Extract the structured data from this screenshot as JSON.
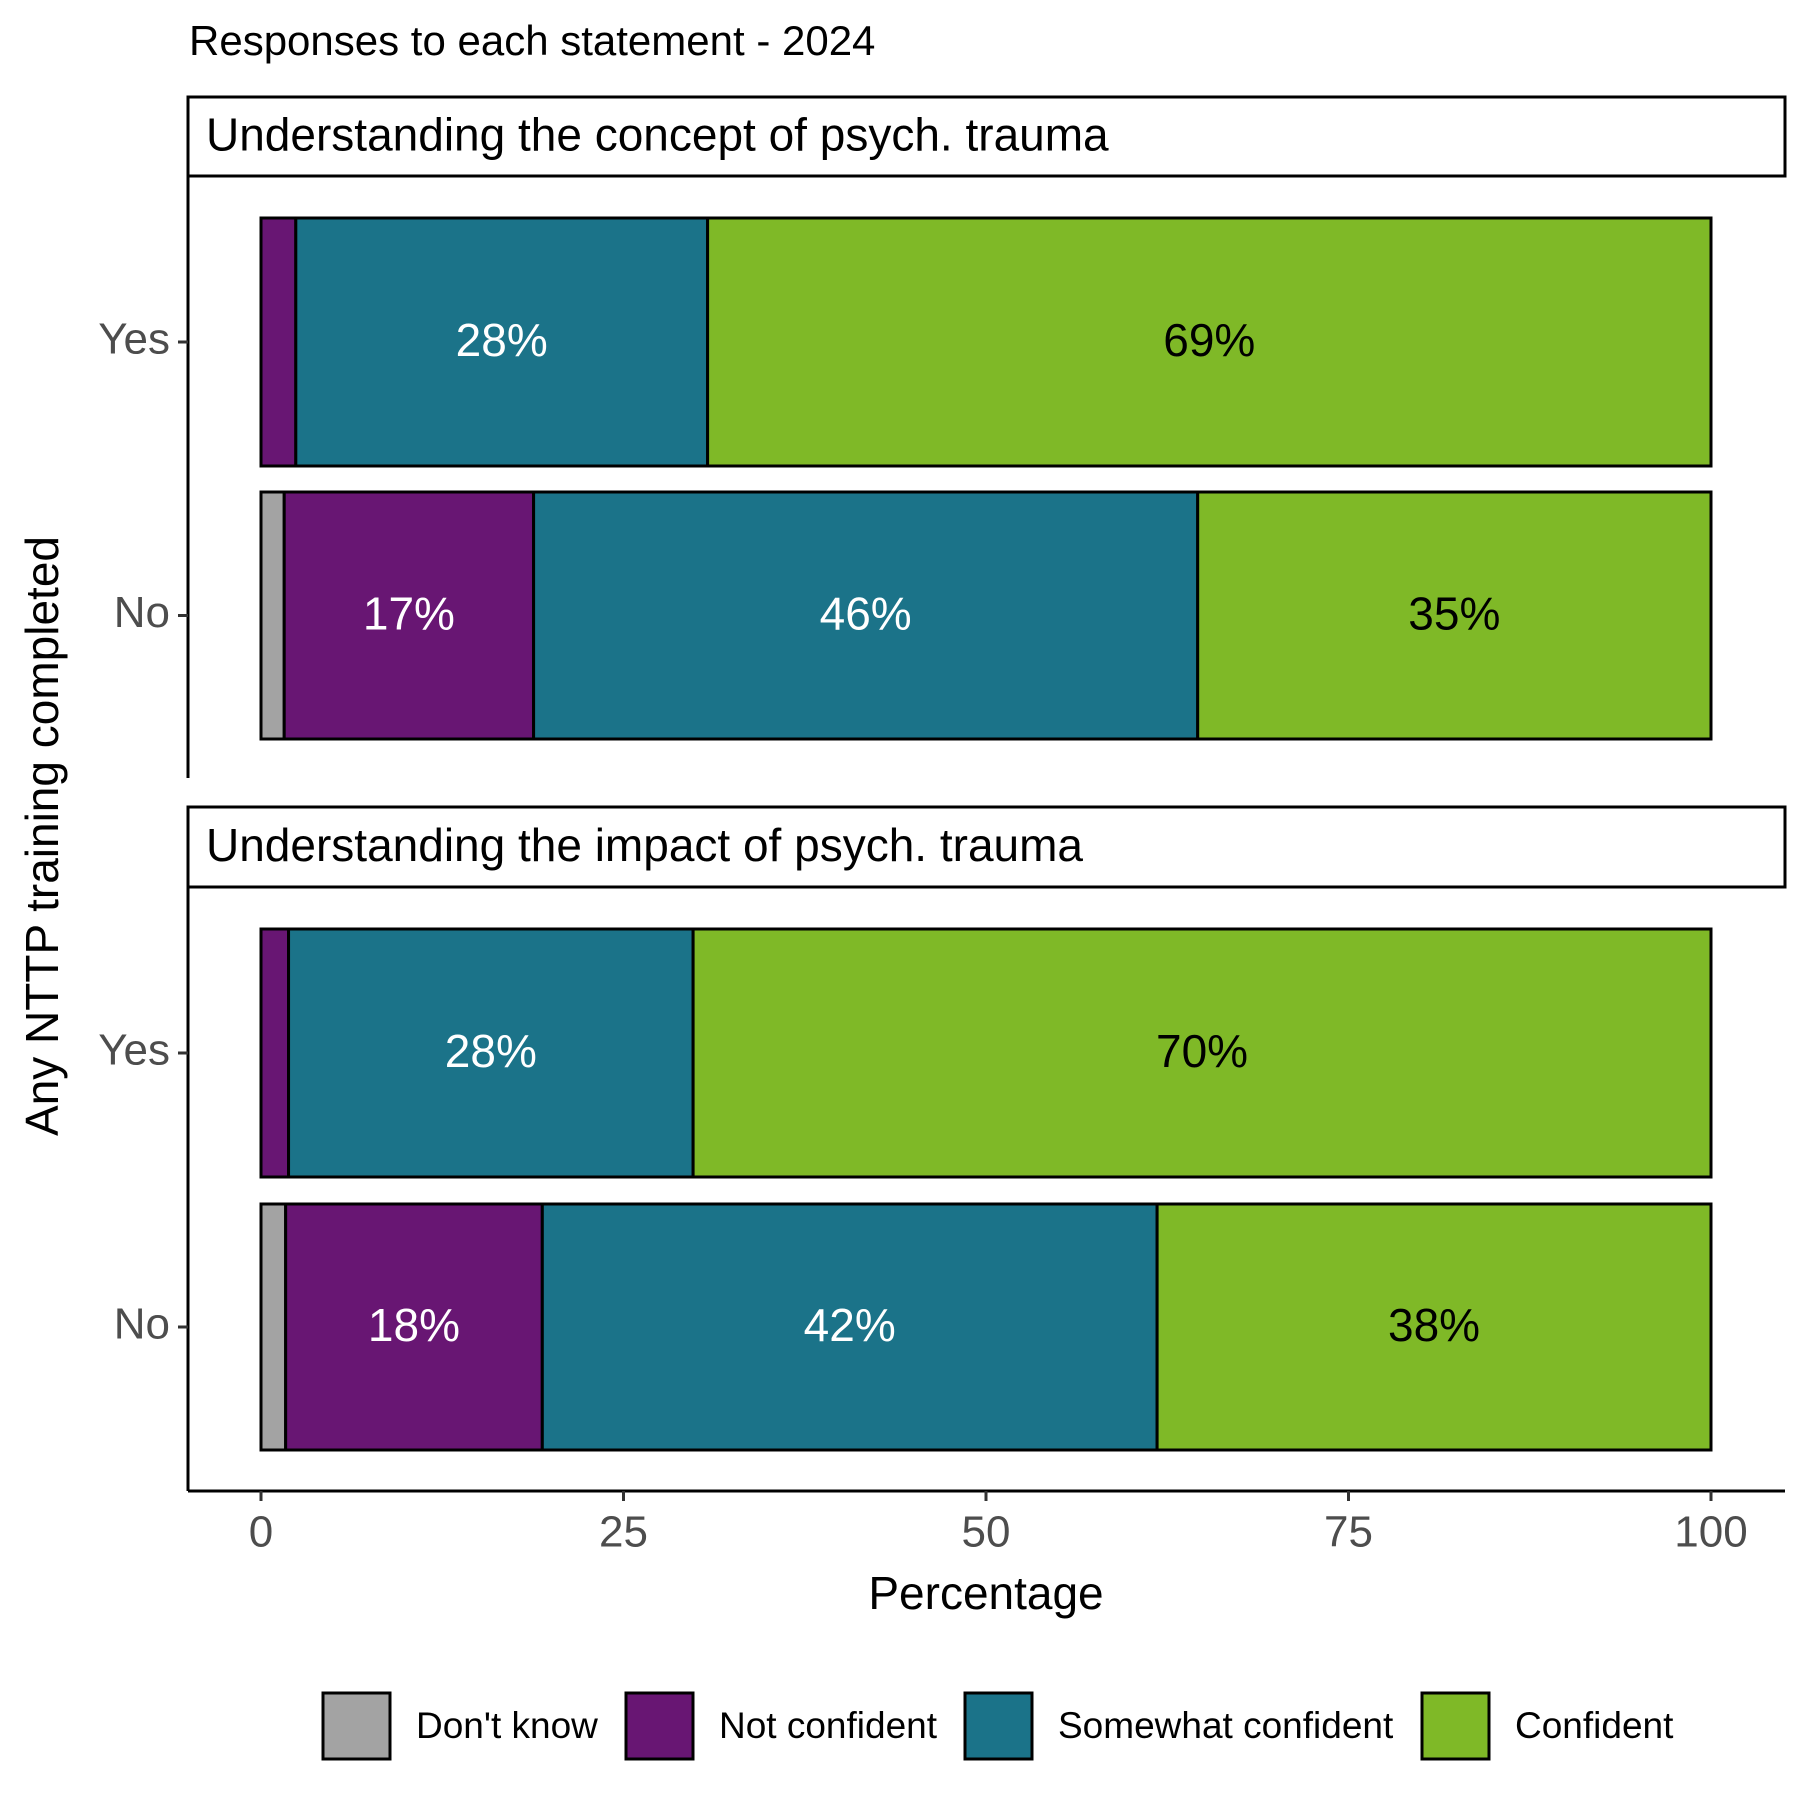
{
  "chart_data": {
    "type": "bar",
    "orientation": "horizontal",
    "stacked": true,
    "title": "Responses to each statement - 2024",
    "xlabel": "Percentage",
    "ylabel": "Any NTTP training completed",
    "xlim": [
      0,
      100
    ],
    "xticks": [
      0,
      25,
      50,
      75,
      100
    ],
    "legend": "bottom",
    "facets": [
      {
        "title": "Understanding the concept of psych. trauma",
        "categories": [
          "Yes",
          "No"
        ]
      },
      {
        "title": "Understanding the impact of psych. trauma",
        "categories": [
          "Yes",
          "No"
        ]
      }
    ],
    "series": [
      {
        "name": "Don't know",
        "color": "#a3a3a3",
        "label_color": "#ffffff",
        "values": [
          [
            0,
            1.6
          ],
          [
            0,
            1.7
          ]
        ],
        "value_labels": [
          [
            null,
            null
          ],
          [
            null,
            null
          ]
        ]
      },
      {
        "name": "Not confident",
        "color": "#681673",
        "label_color": "#ffffff",
        "values": [
          [
            2.4,
            17.2
          ],
          [
            1.9,
            17.7
          ]
        ],
        "value_labels": [
          [
            null,
            "17%"
          ],
          [
            null,
            "18%"
          ]
        ]
      },
      {
        "name": "Somewhat confident",
        "color": "#1b7389",
        "label_color": "#ffffff",
        "values": [
          [
            28.4,
            45.8
          ],
          [
            27.9,
            42.4
          ]
        ],
        "value_labels": [
          [
            "28%",
            "46%"
          ],
          [
            "28%",
            "42%"
          ]
        ]
      },
      {
        "name": "Confident",
        "color": "#7fb927",
        "label_color": "#000000",
        "values": [
          [
            69.2,
            35.4
          ],
          [
            70.2,
            38.2
          ]
        ],
        "value_labels": [
          [
            "69%",
            "35%"
          ],
          [
            "70%",
            "38%"
          ]
        ]
      }
    ]
  }
}
